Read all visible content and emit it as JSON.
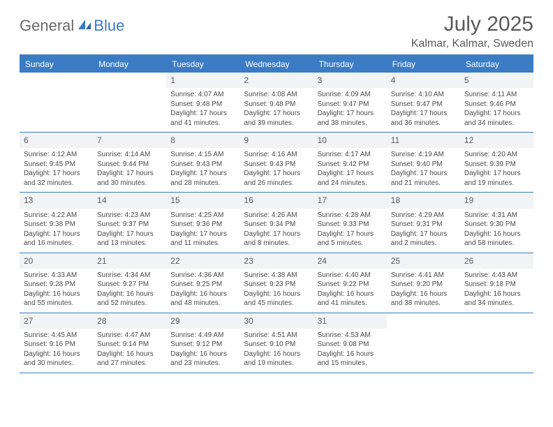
{
  "brand": {
    "word1": "General",
    "word2": "Blue"
  },
  "title": "July 2025",
  "location": "Kalmar, Kalmar, Sweden",
  "colors": {
    "accent": "#3b7cc4",
    "text": "#4a4a4a",
    "heading": "#5a5a5a",
    "shade": "#f1f3f5",
    "background": "#ffffff"
  },
  "dayNames": [
    "Sunday",
    "Monday",
    "Tuesday",
    "Wednesday",
    "Thursday",
    "Friday",
    "Saturday"
  ],
  "weeks": [
    [
      null,
      null,
      {
        "num": "1",
        "sunrise": "Sunrise: 4:07 AM",
        "sunset": "Sunset: 9:48 PM",
        "daylight": "Daylight: 17 hours and 41 minutes."
      },
      {
        "num": "2",
        "sunrise": "Sunrise: 4:08 AM",
        "sunset": "Sunset: 9:48 PM",
        "daylight": "Daylight: 17 hours and 39 minutes."
      },
      {
        "num": "3",
        "sunrise": "Sunrise: 4:09 AM",
        "sunset": "Sunset: 9:47 PM",
        "daylight": "Daylight: 17 hours and 38 minutes."
      },
      {
        "num": "4",
        "sunrise": "Sunrise: 4:10 AM",
        "sunset": "Sunset: 9:47 PM",
        "daylight": "Daylight: 17 hours and 36 minutes."
      },
      {
        "num": "5",
        "sunrise": "Sunrise: 4:11 AM",
        "sunset": "Sunset: 9:46 PM",
        "daylight": "Daylight: 17 hours and 34 minutes."
      }
    ],
    [
      {
        "num": "6",
        "sunrise": "Sunrise: 4:12 AM",
        "sunset": "Sunset: 9:45 PM",
        "daylight": "Daylight: 17 hours and 32 minutes."
      },
      {
        "num": "7",
        "sunrise": "Sunrise: 4:14 AM",
        "sunset": "Sunset: 9:44 PM",
        "daylight": "Daylight: 17 hours and 30 minutes."
      },
      {
        "num": "8",
        "sunrise": "Sunrise: 4:15 AM",
        "sunset": "Sunset: 9:43 PM",
        "daylight": "Daylight: 17 hours and 28 minutes."
      },
      {
        "num": "9",
        "sunrise": "Sunrise: 4:16 AM",
        "sunset": "Sunset: 9:43 PM",
        "daylight": "Daylight: 17 hours and 26 minutes."
      },
      {
        "num": "10",
        "sunrise": "Sunrise: 4:17 AM",
        "sunset": "Sunset: 9:42 PM",
        "daylight": "Daylight: 17 hours and 24 minutes."
      },
      {
        "num": "11",
        "sunrise": "Sunrise: 4:19 AM",
        "sunset": "Sunset: 9:40 PM",
        "daylight": "Daylight: 17 hours and 21 minutes."
      },
      {
        "num": "12",
        "sunrise": "Sunrise: 4:20 AM",
        "sunset": "Sunset: 9:39 PM",
        "daylight": "Daylight: 17 hours and 19 minutes."
      }
    ],
    [
      {
        "num": "13",
        "sunrise": "Sunrise: 4:22 AM",
        "sunset": "Sunset: 9:38 PM",
        "daylight": "Daylight: 17 hours and 16 minutes."
      },
      {
        "num": "14",
        "sunrise": "Sunrise: 4:23 AM",
        "sunset": "Sunset: 9:37 PM",
        "daylight": "Daylight: 17 hours and 13 minutes."
      },
      {
        "num": "15",
        "sunrise": "Sunrise: 4:25 AM",
        "sunset": "Sunset: 9:36 PM",
        "daylight": "Daylight: 17 hours and 11 minutes."
      },
      {
        "num": "16",
        "sunrise": "Sunrise: 4:26 AM",
        "sunset": "Sunset: 9:34 PM",
        "daylight": "Daylight: 17 hours and 8 minutes."
      },
      {
        "num": "17",
        "sunrise": "Sunrise: 4:28 AM",
        "sunset": "Sunset: 9:33 PM",
        "daylight": "Daylight: 17 hours and 5 minutes."
      },
      {
        "num": "18",
        "sunrise": "Sunrise: 4:29 AM",
        "sunset": "Sunset: 9:31 PM",
        "daylight": "Daylight: 17 hours and 2 minutes."
      },
      {
        "num": "19",
        "sunrise": "Sunrise: 4:31 AM",
        "sunset": "Sunset: 9:30 PM",
        "daylight": "Daylight: 16 hours and 58 minutes."
      }
    ],
    [
      {
        "num": "20",
        "sunrise": "Sunrise: 4:33 AM",
        "sunset": "Sunset: 9:28 PM",
        "daylight": "Daylight: 16 hours and 55 minutes."
      },
      {
        "num": "21",
        "sunrise": "Sunrise: 4:34 AM",
        "sunset": "Sunset: 9:27 PM",
        "daylight": "Daylight: 16 hours and 52 minutes."
      },
      {
        "num": "22",
        "sunrise": "Sunrise: 4:36 AM",
        "sunset": "Sunset: 9:25 PM",
        "daylight": "Daylight: 16 hours and 48 minutes."
      },
      {
        "num": "23",
        "sunrise": "Sunrise: 4:38 AM",
        "sunset": "Sunset: 9:23 PM",
        "daylight": "Daylight: 16 hours and 45 minutes."
      },
      {
        "num": "24",
        "sunrise": "Sunrise: 4:40 AM",
        "sunset": "Sunset: 9:22 PM",
        "daylight": "Daylight: 16 hours and 41 minutes."
      },
      {
        "num": "25",
        "sunrise": "Sunrise: 4:41 AM",
        "sunset": "Sunset: 9:20 PM",
        "daylight": "Daylight: 16 hours and 38 minutes."
      },
      {
        "num": "26",
        "sunrise": "Sunrise: 4:43 AM",
        "sunset": "Sunset: 9:18 PM",
        "daylight": "Daylight: 16 hours and 34 minutes."
      }
    ],
    [
      {
        "num": "27",
        "sunrise": "Sunrise: 4:45 AM",
        "sunset": "Sunset: 9:16 PM",
        "daylight": "Daylight: 16 hours and 30 minutes."
      },
      {
        "num": "28",
        "sunrise": "Sunrise: 4:47 AM",
        "sunset": "Sunset: 9:14 PM",
        "daylight": "Daylight: 16 hours and 27 minutes."
      },
      {
        "num": "29",
        "sunrise": "Sunrise: 4:49 AM",
        "sunset": "Sunset: 9:12 PM",
        "daylight": "Daylight: 16 hours and 23 minutes."
      },
      {
        "num": "30",
        "sunrise": "Sunrise: 4:51 AM",
        "sunset": "Sunset: 9:10 PM",
        "daylight": "Daylight: 16 hours and 19 minutes."
      },
      {
        "num": "31",
        "sunrise": "Sunrise: 4:53 AM",
        "sunset": "Sunset: 9:08 PM",
        "daylight": "Daylight: 16 hours and 15 minutes."
      },
      null,
      null
    ]
  ]
}
